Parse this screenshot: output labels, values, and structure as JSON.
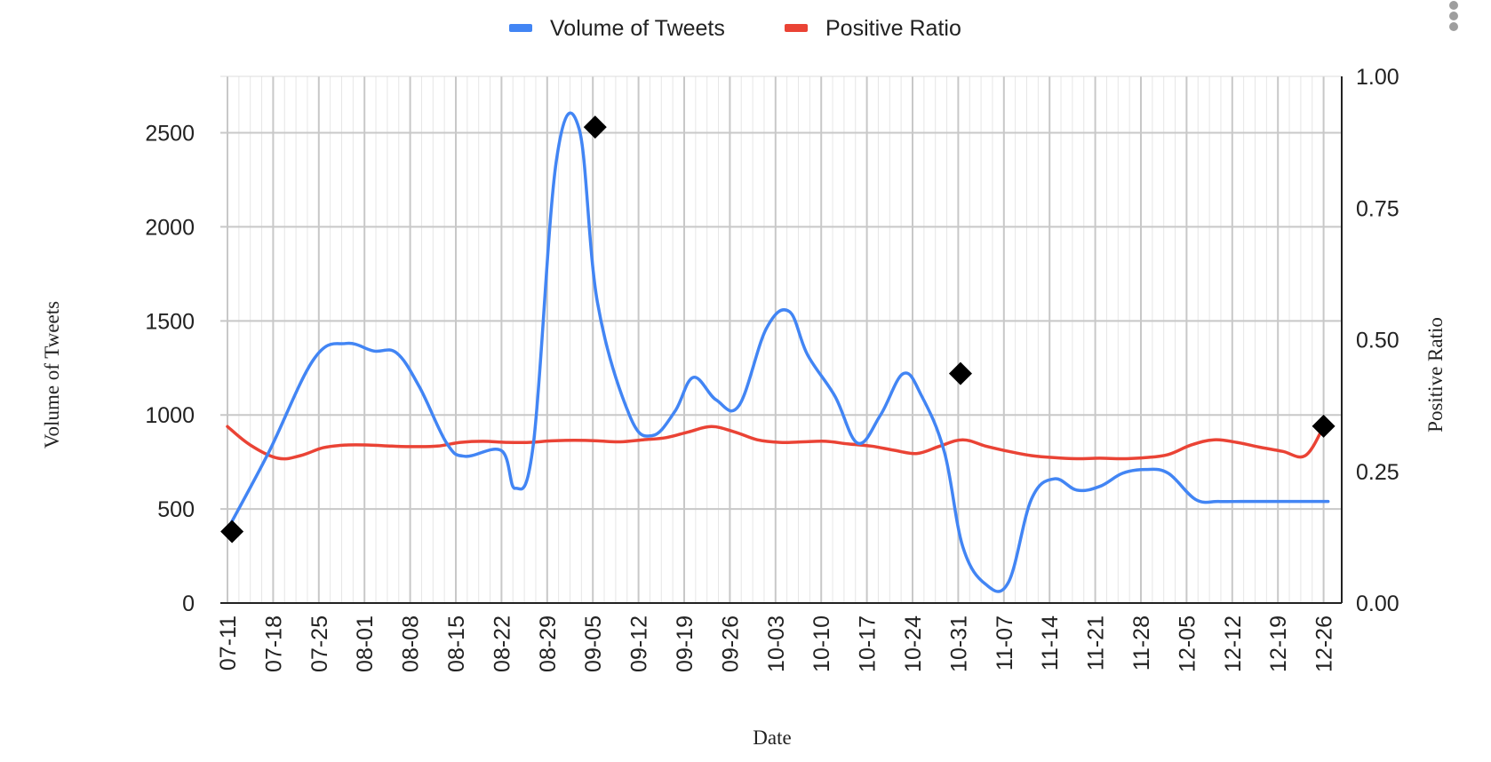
{
  "chart_data": {
    "type": "line",
    "xlabel": "Date",
    "ylabel": "Volume of Tweets",
    "y2label": "Positive Ratio",
    "ylim": [
      0,
      2800
    ],
    "y2lim": [
      0,
      1
    ],
    "yticks": [
      "0",
      "500",
      "1000",
      "1500",
      "2000",
      "2500"
    ],
    "y2ticks": [
      "0.00",
      "0.25",
      "0.50",
      "0.75",
      "1.00"
    ],
    "categories": [
      "07-11",
      "07-18",
      "07-25",
      "08-01",
      "08-08",
      "08-15",
      "08-22",
      "08-29",
      "09-05",
      "09-12",
      "09-19",
      "09-26",
      "10-03",
      "10-10",
      "10-17",
      "10-24",
      "10-31",
      "11-07",
      "11-14",
      "11-21",
      "11-28",
      "12-05",
      "12-12",
      "12-19",
      "12-26"
    ],
    "legend_position": "top-center",
    "series": [
      {
        "name": "Volume of Tweets",
        "axis": "left",
        "color": "#4285F4",
        "x": [
          0.0,
          0.9,
          1.9,
          2.6,
          3.2,
          3.7,
          4.2,
          4.8,
          5.2,
          6.0,
          6.3,
          6.7,
          7.2,
          7.7,
          8.1,
          8.8,
          9.3,
          9.8,
          10.2,
          10.7,
          11.2,
          11.8,
          12.3,
          12.7,
          13.3,
          13.8,
          14.3,
          14.8,
          15.2,
          15.7,
          16.1,
          16.6,
          17.1,
          17.6,
          18.1,
          18.6,
          19.1,
          19.6,
          20.1,
          20.6,
          21.2,
          21.7,
          22.2,
          22.6,
          23.1,
          23.6,
          24.1
        ],
        "values": [
          390,
          800,
          1300,
          1380,
          1340,
          1330,
          1150,
          850,
          780,
          810,
          610,
          850,
          2350,
          2520,
          1600,
          1000,
          890,
          1020,
          1200,
          1080,
          1050,
          1460,
          1550,
          1320,
          1100,
          850,
          1000,
          1220,
          1100,
          800,
          300,
          100,
          110,
          550,
          660,
          600,
          620,
          690,
          710,
          690,
          550,
          540,
          540,
          540,
          540,
          540,
          540
        ],
        "markers": [
          {
            "x": 0.1,
            "value": 380
          },
          {
            "x": 8.05,
            "value": 2530
          },
          {
            "x": 16.05,
            "value": 1220
          },
          {
            "x": 24.0,
            "value": 940
          }
        ]
      },
      {
        "name": "Positive Ratio",
        "axis": "right",
        "color": "#EA4335",
        "x": [
          0.0,
          0.5,
          1.1,
          1.6,
          2.1,
          2.6,
          3.1,
          3.6,
          4.1,
          4.6,
          5.1,
          5.6,
          6.1,
          6.6,
          7.1,
          7.6,
          8.1,
          8.6,
          9.1,
          9.6,
          10.1,
          10.6,
          11.1,
          11.6,
          12.1,
          12.6,
          13.1,
          13.6,
          14.1,
          14.6,
          15.1,
          15.6,
          16.1,
          16.6,
          17.1,
          17.6,
          18.1,
          18.6,
          19.1,
          19.6,
          20.1,
          20.6,
          21.1,
          21.6,
          22.1,
          22.6,
          23.1,
          23.6,
          24.0
        ],
        "values": [
          0.335,
          0.3,
          0.275,
          0.28,
          0.295,
          0.3,
          0.3,
          0.298,
          0.297,
          0.298,
          0.305,
          0.307,
          0.305,
          0.305,
          0.308,
          0.309,
          0.308,
          0.306,
          0.31,
          0.314,
          0.325,
          0.335,
          0.325,
          0.31,
          0.305,
          0.306,
          0.307,
          0.302,
          0.298,
          0.29,
          0.284,
          0.298,
          0.31,
          0.298,
          0.288,
          0.28,
          0.276,
          0.274,
          0.275,
          0.274,
          0.276,
          0.282,
          0.3,
          0.31,
          0.305,
          0.296,
          0.288,
          0.28,
          0.335
        ],
        "markers": []
      }
    ]
  }
}
